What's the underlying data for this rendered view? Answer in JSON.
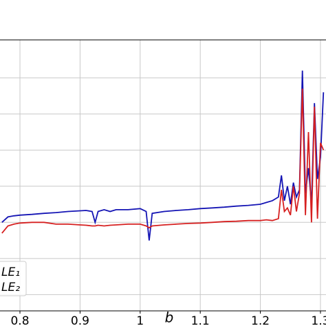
{
  "chart_data": {
    "type": "line",
    "x_label": "b",
    "x": [
      0.77,
      0.78,
      0.79,
      0.8,
      0.82,
      0.84,
      0.86,
      0.88,
      0.9,
      0.91,
      0.92,
      0.925,
      0.93,
      0.94,
      0.95,
      0.96,
      0.98,
      1.0,
      1.01,
      1.015,
      1.02,
      1.04,
      1.06,
      1.08,
      1.1,
      1.12,
      1.14,
      1.16,
      1.18,
      1.2,
      1.21,
      1.22,
      1.23,
      1.235,
      1.24,
      1.245,
      1.25,
      1.255,
      1.26,
      1.265,
      1.27,
      1.275,
      1.28,
      1.285,
      1.29,
      1.295,
      1.3,
      1.305
    ],
    "series": [
      {
        "name": "LE₁",
        "color": "#1414b4",
        "values": [
          2.0,
          2.15,
          2.18,
          2.2,
          2.22,
          2.25,
          2.27,
          2.3,
          2.32,
          2.33,
          2.3,
          2.0,
          2.3,
          2.35,
          2.3,
          2.35,
          2.35,
          2.38,
          2.3,
          1.5,
          2.25,
          2.3,
          2.33,
          2.35,
          2.38,
          2.4,
          2.42,
          2.45,
          2.47,
          2.5,
          2.55,
          2.6,
          2.7,
          3.3,
          2.6,
          3.0,
          2.5,
          3.1,
          2.7,
          2.9,
          6.2,
          2.8,
          3.5,
          2.5,
          5.3,
          3.2,
          3.8,
          5.6
        ]
      },
      {
        "name": "LE₂",
        "color": "#d62020",
        "values": [
          1.7,
          1.9,
          1.95,
          1.98,
          2.0,
          2.0,
          1.95,
          1.95,
          1.93,
          1.92,
          1.9,
          1.9,
          1.92,
          1.9,
          1.92,
          1.93,
          1.95,
          1.95,
          1.9,
          1.85,
          1.9,
          1.93,
          1.95,
          1.97,
          1.98,
          2.0,
          2.02,
          2.03,
          2.05,
          2.05,
          2.07,
          2.05,
          2.1,
          2.9,
          2.3,
          2.4,
          2.2,
          3.0,
          2.3,
          2.8,
          5.7,
          2.2,
          4.5,
          2.0,
          5.2,
          2.1,
          4.2,
          4.0
        ]
      }
    ],
    "xlim": [
      0.7668,
      1.3092
    ],
    "xticks": [
      0.8,
      0.9,
      1.0,
      1.1,
      1.2,
      1.3
    ],
    "ylim": [
      -0.45,
      7.05
    ],
    "ygrid": [
      0,
      1,
      2,
      3,
      4,
      5,
      6
    ],
    "grid": true
  }
}
